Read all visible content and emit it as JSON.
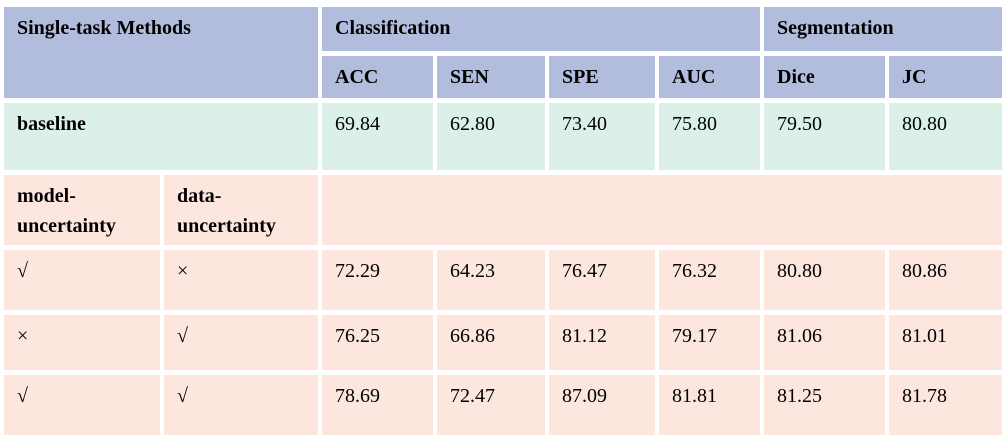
{
  "table": {
    "colors": {
      "header_bg": "#b2bcdd",
      "baseline_bg": "#dbf0e6",
      "uncertainty_bg": "#fce6de",
      "text": "#000000"
    },
    "header": {
      "single_task_label": "Single-task Methods",
      "classification_label": "Classification",
      "segmentation_label": "Segmentation",
      "metrics": [
        "ACC",
        "SEN",
        "SPE",
        "AUC",
        "Dice",
        "JC"
      ]
    },
    "baseline_row": {
      "label": "baseline",
      "values": [
        "69.84",
        "62.80",
        "73.40",
        "75.80",
        "79.50",
        "80.80"
      ]
    },
    "uncertainty_header": {
      "model_label": "model-uncertainty",
      "data_label": "data-uncertainty"
    },
    "uncertainty_rows": [
      {
        "model": "√",
        "data": "×",
        "values": [
          "72.29",
          "64.23",
          "76.47",
          "76.32",
          "80.80",
          "80.86"
        ]
      },
      {
        "model": "×",
        "data": "√",
        "values": [
          "76.25",
          "66.86",
          "81.12",
          "79.17",
          "81.06",
          "81.01"
        ]
      },
      {
        "model": "√",
        "data": "√",
        "values": [
          "78.69",
          "72.47",
          "87.09",
          "81.81",
          "81.25",
          "81.78"
        ]
      }
    ]
  }
}
